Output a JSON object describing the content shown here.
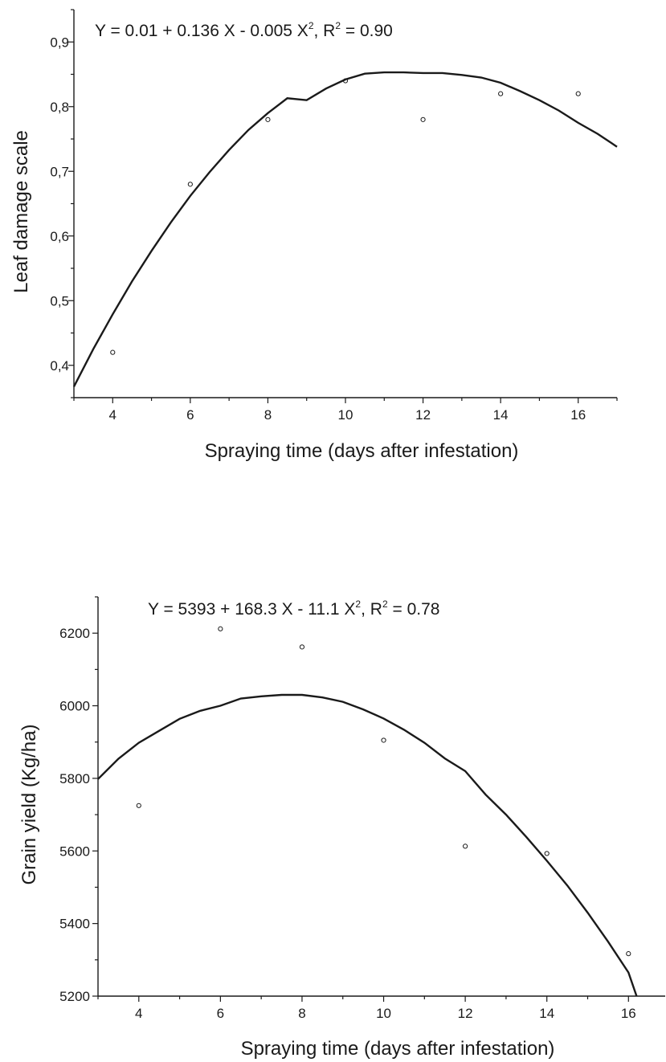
{
  "chart_data": [
    {
      "type": "scatter",
      "title": "",
      "equation": {
        "prefix": "Y = 0.01 + 0.136 X - 0.005 X",
        "exp": "2",
        "mid": ", R",
        "r_exp": "2",
        "suffix": " = 0.90"
      },
      "xlabel": "Spraying time (days after infestation)",
      "ylabel": "Leaf damage scale",
      "xlim": [
        3,
        17
      ],
      "ylim": [
        0.35,
        0.95
      ],
      "xticks": [
        4,
        6,
        8,
        10,
        12,
        14,
        16
      ],
      "xtick_labels": [
        "4",
        "6",
        "8",
        "10",
        "12",
        "14",
        "16"
      ],
      "yticks": [
        0.4,
        0.5,
        0.6,
        0.7,
        0.8,
        0.9
      ],
      "ytick_labels": [
        "0,4",
        "0,5",
        "0,6",
        "0,7",
        "0,8",
        "0,9"
      ],
      "grid": false,
      "series": [
        {
          "kind": "points",
          "x": [
            4,
            6,
            8,
            10,
            12,
            14,
            16
          ],
          "y": [
            0.42,
            0.68,
            0.78,
            0.84,
            0.78,
            0.82,
            0.82
          ]
        },
        {
          "kind": "fit",
          "x": [
            3,
            3.5,
            4,
            4.5,
            5,
            5.5,
            6,
            6.5,
            7,
            7.5,
            8,
            8.5,
            9,
            9.5,
            10,
            10.5,
            11,
            11.5,
            12,
            12.5,
            13,
            13.5,
            14,
            14.5,
            15,
            15.5,
            16,
            16.5,
            17
          ],
          "y": [
            0.367,
            0.425,
            0.479,
            0.53,
            0.577,
            0.621,
            0.662,
            0.699,
            0.733,
            0.764,
            0.79,
            0.813,
            0.81,
            0.828,
            0.842,
            0.851,
            0.853,
            0.853,
            0.852,
            0.852,
            0.849,
            0.845,
            0.837,
            0.824,
            0.81,
            0.794,
            0.775,
            0.758,
            0.738
          ]
        }
      ]
    },
    {
      "type": "scatter",
      "title": "",
      "equation": {
        "prefix": "Y = 5393 + 168.3 X - 11.1 X",
        "exp": "2",
        "mid": ", R",
        "r_exp": "2",
        "suffix": " = 0.78"
      },
      "xlabel": "Spraying time (days after infestation)",
      "ylabel": "Grain yield (Kg/ha)",
      "xlim": [
        3,
        16.9
      ],
      "ylim": [
        5200,
        6300
      ],
      "xticks": [
        4,
        6,
        8,
        10,
        12,
        14,
        16
      ],
      "xtick_labels": [
        "4",
        "6",
        "8",
        "10",
        "12",
        "14",
        "16"
      ],
      "yticks": [
        5200,
        5400,
        5600,
        5800,
        6000,
        6200
      ],
      "ytick_labels": [
        "5200",
        "5400",
        "5600",
        "5800",
        "6000",
        "6200"
      ],
      "grid": false,
      "series": [
        {
          "kind": "points",
          "x": [
            4,
            6,
            8,
            10,
            12,
            14,
            16
          ],
          "y": [
            5725,
            6212,
            6162,
            5905,
            5613,
            5593,
            5317
          ]
        },
        {
          "kind": "fit",
          "x": [
            3,
            3.5,
            4,
            4.5,
            5,
            5.5,
            6,
            6.5,
            7,
            7.5,
            8,
            8.5,
            9,
            9.5,
            10,
            10.5,
            11,
            11.5,
            12,
            12.5,
            13,
            13.5,
            14,
            14.5,
            15,
            15.5,
            16,
            16.2
          ],
          "y": [
            5798,
            5854,
            5898,
            5931,
            5964,
            5986,
            6000,
            6020,
            6026,
            6030,
            6030,
            6023,
            6011,
            5990,
            5965,
            5934,
            5898,
            5855,
            5820,
            5755,
            5700,
            5638,
            5573,
            5505,
            5430,
            5350,
            5265,
            5200
          ]
        }
      ]
    }
  ]
}
